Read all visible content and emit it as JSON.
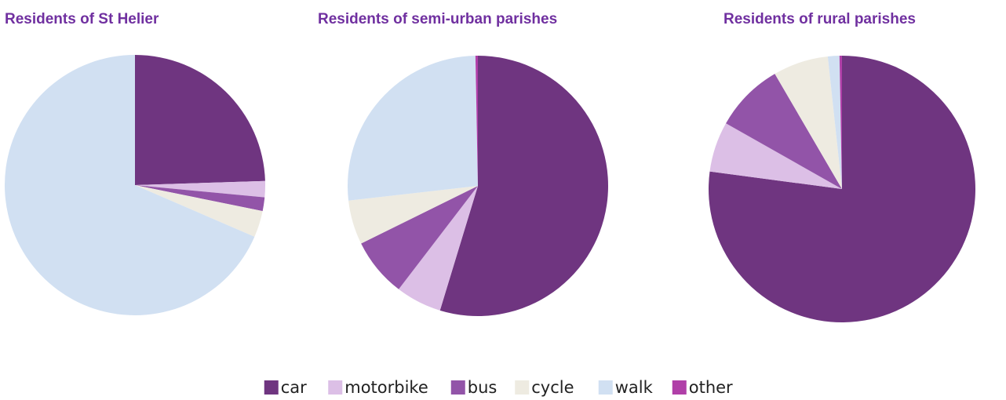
{
  "chart_data": [
    {
      "type": "pie",
      "title": "Residents of St Helier",
      "categories": [
        "car",
        "motorbike",
        "bus",
        "cycle",
        "walk",
        "other"
      ],
      "values": [
        24.5,
        2,
        1.7,
        3.3,
        68.5,
        0
      ],
      "colors": [
        "#6f3580",
        "#dcbfe6",
        "#9254a8",
        "#eeebe1",
        "#d1e0f2",
        "#b03fa8"
      ],
      "legend": "bottom"
    },
    {
      "type": "pie",
      "title": "Residents of semi-urban parishes",
      "categories": [
        "car",
        "motorbike",
        "bus",
        "cycle",
        "walk",
        "other"
      ],
      "values": [
        54.7,
        5.7,
        7.3,
        5.5,
        26.5,
        0.3
      ],
      "colors": [
        "#6f3580",
        "#dcbfe6",
        "#9254a8",
        "#eeebe1",
        "#d1e0f2",
        "#b03fa8"
      ],
      "legend": "bottom"
    },
    {
      "type": "pie",
      "title": "Residents of rural parishes",
      "categories": [
        "car",
        "motorbike",
        "bus",
        "cycle",
        "walk",
        "other"
      ],
      "values": [
        77.1,
        6.1,
        8.4,
        6.7,
        1.4,
        0.3
      ],
      "colors": [
        "#6f3580",
        "#dcbfe6",
        "#9254a8",
        "#eeebe1",
        "#d1e0f2",
        "#b03fa8"
      ],
      "legend": "bottom"
    }
  ]
}
